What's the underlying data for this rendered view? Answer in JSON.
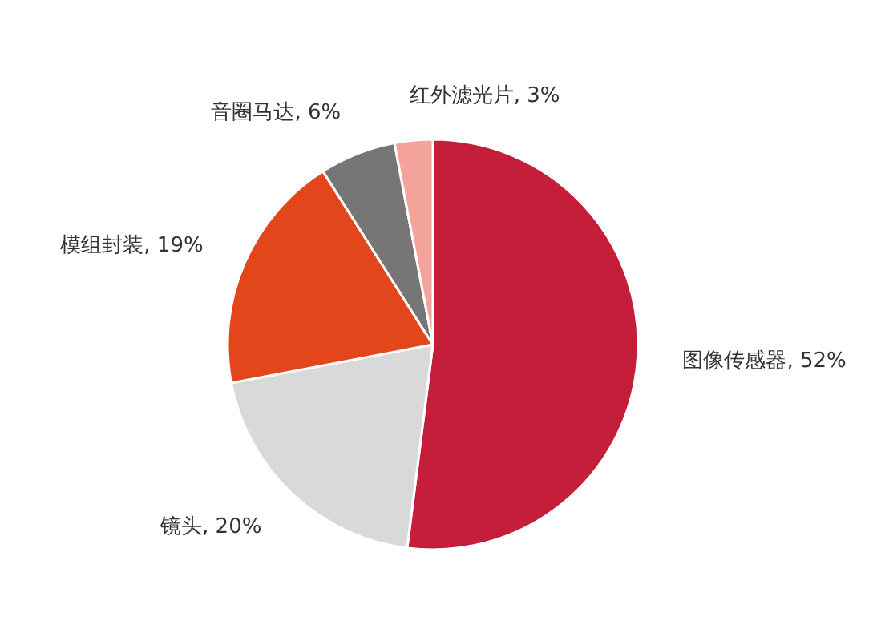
{
  "chart_data": {
    "type": "pie",
    "categories": [
      "图像传感器",
      "镜头",
      "模组封装",
      "音圈马达",
      "红外滤光片"
    ],
    "values": [
      52,
      20,
      19,
      6,
      3
    ],
    "value_labels": [
      ", 52%",
      ", 20%",
      ", 19%",
      ", 6%",
      ", 3%"
    ],
    "colors": [
      "#c41e3a",
      "#d9d9d9",
      "#e2461a",
      "#767676",
      "#f4a39a"
    ]
  }
}
